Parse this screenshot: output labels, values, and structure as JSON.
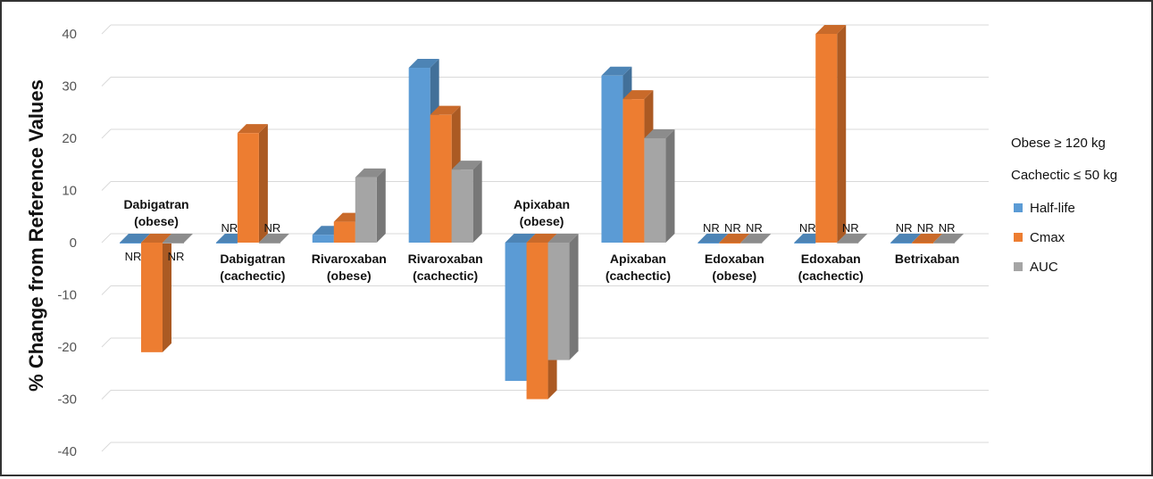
{
  "chart_data": {
    "type": "bar",
    "ylabel": "% Change from Reference Values",
    "ylim": [
      -40,
      40
    ],
    "yticks": [
      40,
      30,
      20,
      10,
      0,
      -10,
      -20,
      -30,
      -40
    ],
    "grid": true,
    "legend_position": "right",
    "categories": [
      {
        "line1": "Dabigatran",
        "line2": "(obese)"
      },
      {
        "line1": "Dabigatran",
        "line2": "(cachectic)"
      },
      {
        "line1": "Rivaroxaban",
        "line2": "(obese)"
      },
      {
        "line1": "Rivaroxaban",
        "line2": "(cachectic)"
      },
      {
        "line1": "Apixaban",
        "line2": "(obese)"
      },
      {
        "line1": "Apixaban",
        "line2": "(cachectic)"
      },
      {
        "line1": "Edoxaban",
        "line2": "(obese)"
      },
      {
        "line1": "Edoxaban",
        "line2": "(cachectic)"
      },
      {
        "line1": "Betrixaban",
        "line2": ""
      }
    ],
    "series": [
      {
        "name": "Half-life",
        "color": "#5b9bd5",
        "values": [
          null,
          null,
          1.5,
          33.5,
          -26.5,
          32,
          null,
          null,
          null
        ]
      },
      {
        "name": "Cmax",
        "color": "#ed7d31",
        "values": [
          -21,
          21,
          4,
          24.5,
          -30,
          27.5,
          null,
          40,
          null
        ]
      },
      {
        "name": "AUC",
        "color": "#a5a5a5",
        "values": [
          null,
          null,
          12.5,
          14,
          -22.5,
          20,
          null,
          null,
          null
        ]
      }
    ],
    "nr_label": "NR",
    "annotations": [
      "Obese ≥ 120 kg",
      "Cachectic ≤ 50 kg"
    ]
  }
}
